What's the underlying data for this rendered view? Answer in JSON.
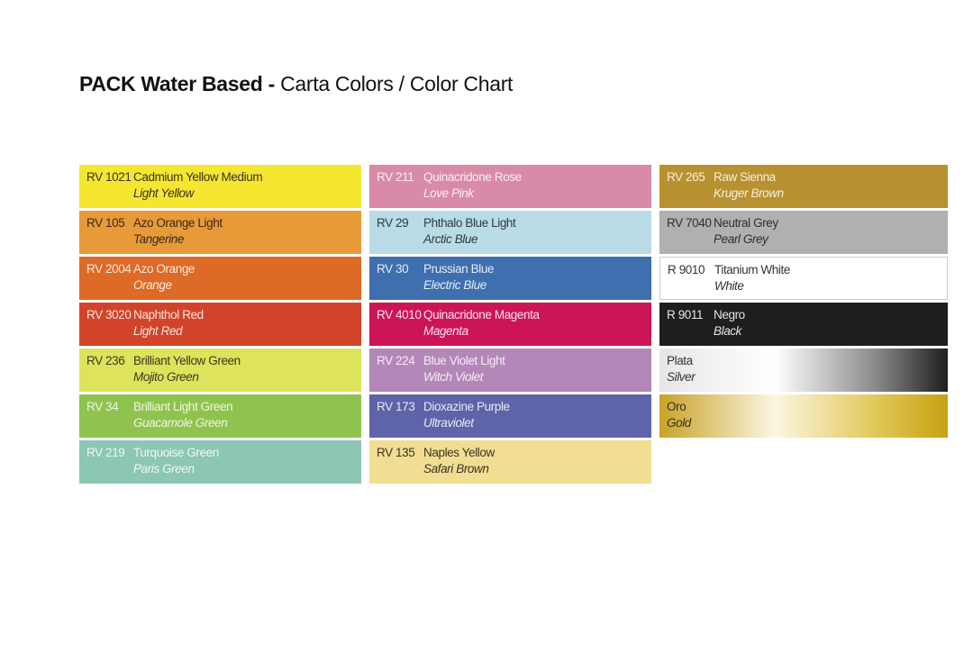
{
  "title": {
    "bold": "PACK Water Based -",
    "rest": "Carta Colors / Color Chart"
  },
  "columns": [
    {
      "swatches": [
        {
          "code": "RV 1021",
          "name": "Cadmium Yellow Medium",
          "alias": "Light Yellow",
          "color": "#f5e62f",
          "text_color": "#3a3320"
        },
        {
          "code": "RV 105",
          "name": "Azo Orange Light",
          "alias": "Tangerine",
          "color": "#e89a38",
          "text_color": "#3a2a1a"
        },
        {
          "code": "RV 2004",
          "name": "Azo Orange",
          "alias": "Orange",
          "color": "#dd6a27",
          "text_color": "#fbe9dd"
        },
        {
          "code": "RV 3020",
          "name": "Naphthol Red",
          "alias": "Light Red",
          "color": "#d2442a",
          "text_color": "#fbe3dc"
        },
        {
          "code": "RV 236",
          "name": "Brilliant Yellow Green",
          "alias": "Mojito Green",
          "color": "#dde35a",
          "text_color": "#3a3a20"
        },
        {
          "code": "RV 34",
          "name": "Brilliant Light Green",
          "alias": "Guacamole Green",
          "color": "#8fc34e",
          "text_color": "#eef6e2"
        },
        {
          "code": "RV 219",
          "name": "Turquoise Green",
          "alias": "Paris Green",
          "color": "#8cc6b4",
          "text_color": "#eef8f4"
        }
      ]
    },
    {
      "swatches": [
        {
          "code": "RV 211",
          "name": "Quinacridone Rose",
          "alias": "Love Pink",
          "color": "#d98aa8",
          "text_color": "#fbeef3"
        },
        {
          "code": "RV 29",
          "name": "Phthalo Blue Light",
          "alias": "Arctic Blue",
          "color": "#b9dbe6",
          "text_color": "#2e3a40"
        },
        {
          "code": "RV 30",
          "name": "Prussian Blue",
          "alias": "Electric Blue",
          "color": "#3f6fae",
          "text_color": "#e3ecf7"
        },
        {
          "code": "RV 4010",
          "name": "Quinacridone Magenta",
          "alias": "Magenta",
          "color": "#cc1556",
          "text_color": "#fbe1ea"
        },
        {
          "code": "RV 224",
          "name": "Blue Violet Light",
          "alias": "Witch Violet",
          "color": "#b487b9",
          "text_color": "#f6ecf7"
        },
        {
          "code": "RV 173",
          "name": "Dioxazine Purple",
          "alias": "Ultraviolet",
          "color": "#5f63aa",
          "text_color": "#e8e9f6"
        },
        {
          "code": "RV 135",
          "name": "Naples Yellow",
          "alias": "Safari Brown",
          "color": "#f1de93",
          "text_color": "#3a3420"
        }
      ]
    },
    {
      "swatches": [
        {
          "code": "RV 265",
          "name": "Raw Sienna",
          "alias": "Kruger Brown",
          "color": "#b89230",
          "text_color": "#f8efd9"
        },
        {
          "code": "RV 7040",
          "name": "Neutral Grey",
          "alias": "Pearl Grey",
          "color": "#aeb1b0",
          "text_color": "#2e3030"
        },
        {
          "code": "R 9010",
          "name": "Titanium White",
          "alias": "White",
          "color": "#ffffff",
          "text_color": "#333333"
        },
        {
          "code": "R 9011",
          "name": "Negro",
          "alias": "Black",
          "color": "#1e1e1e",
          "text_color": "#e6e6e6"
        },
        {
          "code": "Plata",
          "name": "",
          "alias": "Silver",
          "color": "linear-gradient(90deg,#e6e6e6 0%,#ffffff 40%,#8a8a8a 75%,#1e1e1e 100%)",
          "text_color": "#333333"
        },
        {
          "code": "Oro",
          "name": "",
          "alias": "Gold",
          "color": "linear-gradient(90deg,#c9a227 0%,#fbf6e2 40%,#e2c858 75%,#c7a112 100%)",
          "text_color": "#3a3020"
        }
      ]
    }
  ]
}
